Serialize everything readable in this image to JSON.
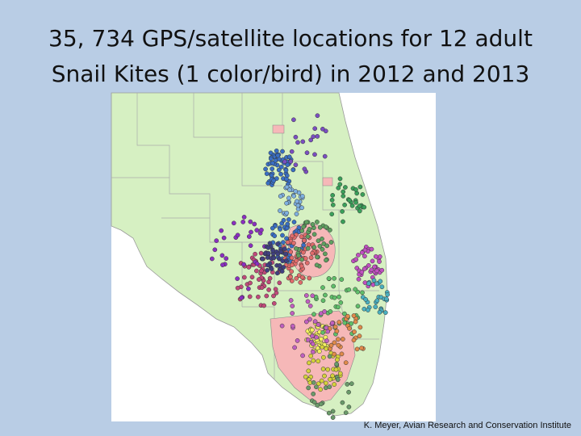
{
  "title": [
    "35, 734 GPS/satellite locations for 12 adult",
    "Snail Kites (1 color/bird) in 2012 and 2013"
  ],
  "credit": "K. Meyer, Avian Research and Conservation Institute"
}
